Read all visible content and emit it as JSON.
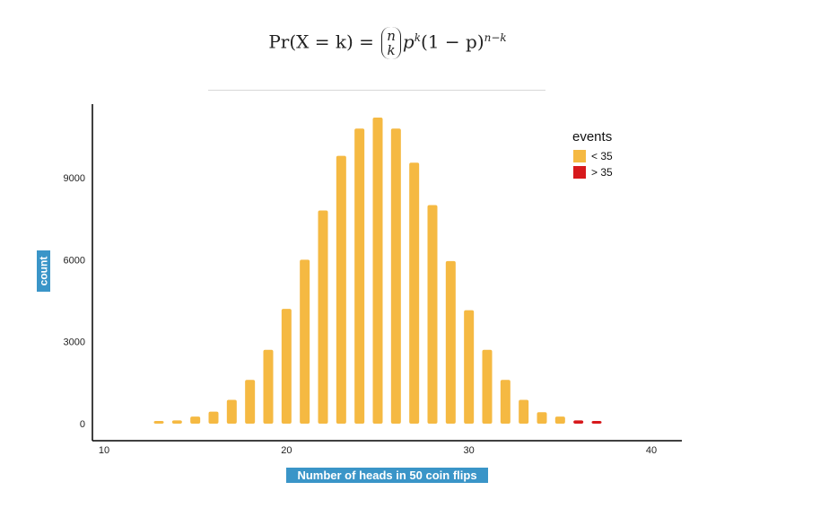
{
  "formula": {
    "lhs": "Pr(X = k) =",
    "binom_top": "n",
    "binom_bottom": "k",
    "rhs_p": "p",
    "rhs_p_exp": "k",
    "rhs_q": "(1 − p)",
    "rhs_q_exp": "n−k"
  },
  "chart_data": {
    "type": "bar",
    "xlabel": "Number of heads in 50 coin flips",
    "ylabel": "count",
    "xlim": [
      10,
      41.5
    ],
    "ylim": [
      0,
      11800
    ],
    "xticks": [
      10,
      20,
      30,
      40
    ],
    "yticks": [
      0,
      3000,
      6000,
      9000
    ],
    "grid": false,
    "legend": {
      "title": "events",
      "placement": "right",
      "entries": [
        {
          "label": "< 35",
          "color": "#f5b942"
        },
        {
          "label": "> 35",
          "color": "#d7191c"
        }
      ]
    },
    "series": [
      {
        "name": "< 35",
        "color": "#f5b942",
        "x": [
          13,
          14,
          15,
          16,
          17,
          18,
          19,
          20,
          21,
          22,
          23,
          24,
          25,
          26,
          27,
          28,
          29,
          30,
          31,
          32,
          33,
          34,
          35
        ],
        "values": [
          90,
          120,
          260,
          440,
          870,
          1600,
          2700,
          4200,
          6000,
          7800,
          9800,
          10800,
          11200,
          10800,
          9550,
          8000,
          5950,
          4150,
          2700,
          1600,
          870,
          420,
          260
        ]
      },
      {
        "name": "> 35",
        "color": "#d7191c",
        "x": [
          36,
          37
        ],
        "values": [
          120,
          90
        ]
      }
    ]
  }
}
